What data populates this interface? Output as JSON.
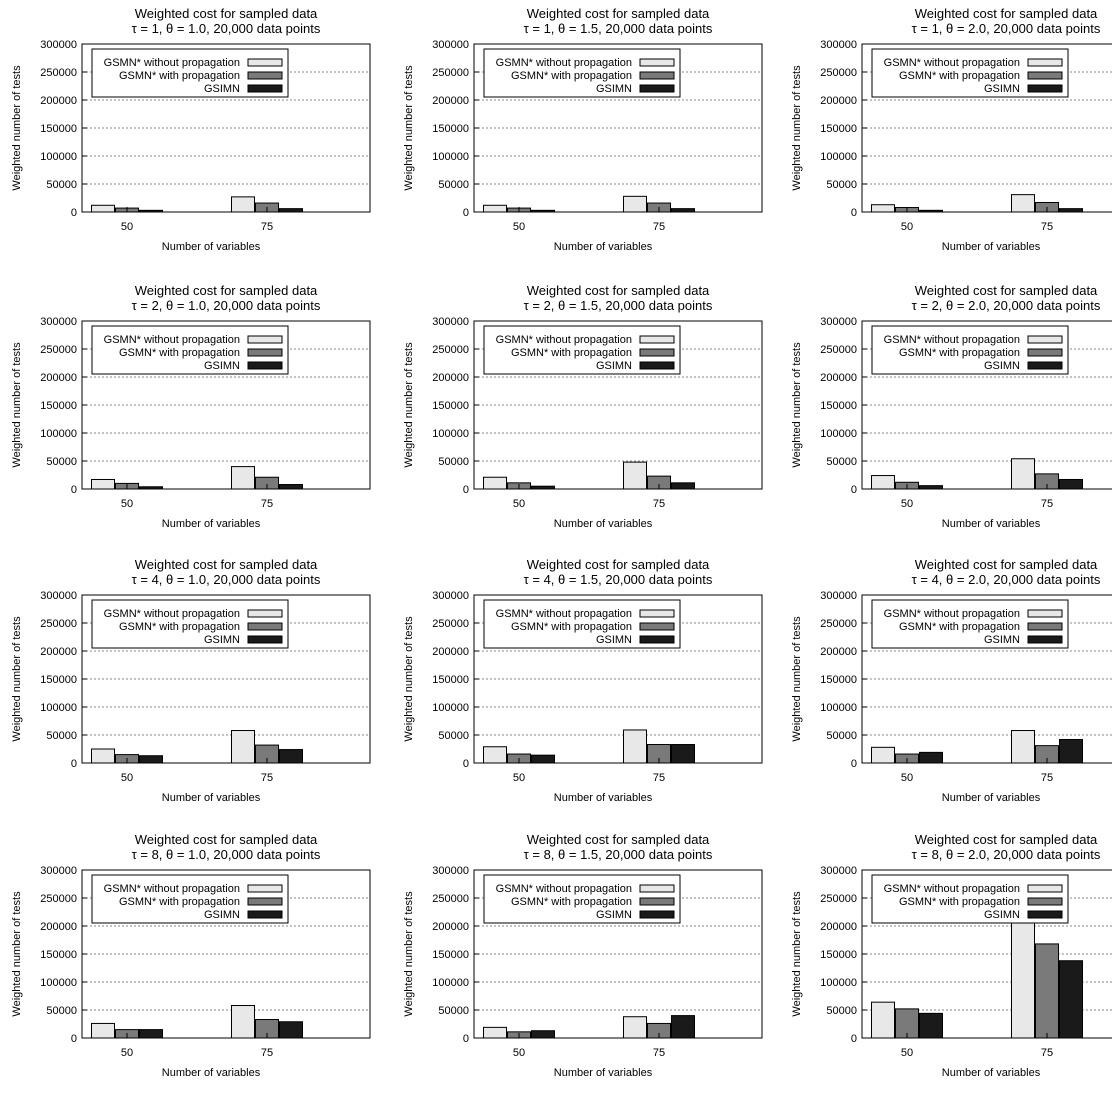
{
  "figure": {
    "colors": {
      "without": "#e8e8e8",
      "with": "#7a7a7a",
      "gsimn": "#1a1a1a",
      "grid": "#888888"
    }
  },
  "chart_data": [
    {
      "type": "bar",
      "title": "Weighted cost for sampled data",
      "subtitle": "τ = 1, θ = 1.0, 20,000 data points",
      "xlabel": "Number of variables",
      "ylabel": "Weighted number of tests",
      "categories": [
        "50",
        "75"
      ],
      "yticks": [
        "0",
        "50000",
        "100000",
        "150000",
        "200000",
        "250000",
        "300000"
      ],
      "ylim": [
        0,
        300000
      ],
      "grid": true,
      "legend": "top-left",
      "series": [
        {
          "name": "GSMN* without propagation",
          "values": [
            12000,
            27000
          ]
        },
        {
          "name": "GSMN* with propagation",
          "values": [
            7000,
            16000
          ]
        },
        {
          "name": "GSIMN",
          "values": [
            3000,
            6000
          ]
        }
      ]
    },
    {
      "type": "bar",
      "title": "Weighted cost for sampled data",
      "subtitle": "τ = 1, θ = 1.5, 20,000 data points",
      "xlabel": "Number of variables",
      "ylabel": "Weighted number of tests",
      "categories": [
        "50",
        "75"
      ],
      "yticks": [
        "0",
        "50000",
        "100000",
        "150000",
        "200000",
        "250000",
        "300000"
      ],
      "ylim": [
        0,
        300000
      ],
      "grid": true,
      "legend": "top-left",
      "series": [
        {
          "name": "GSMN* without propagation",
          "values": [
            12000,
            28000
          ]
        },
        {
          "name": "GSMN* with propagation",
          "values": [
            7000,
            16000
          ]
        },
        {
          "name": "GSIMN",
          "values": [
            3000,
            6000
          ]
        }
      ]
    },
    {
      "type": "bar",
      "title": "Weighted cost for sampled data",
      "subtitle": "τ = 1, θ = 2.0, 20,000 data points",
      "xlabel": "Number of variables",
      "ylabel": "Weighted number of tests",
      "categories": [
        "50",
        "75"
      ],
      "yticks": [
        "0",
        "50000",
        "100000",
        "150000",
        "200000",
        "250000",
        "300000"
      ],
      "ylim": [
        0,
        300000
      ],
      "grid": true,
      "legend": "top-left",
      "series": [
        {
          "name": "GSMN* without propagation",
          "values": [
            13000,
            31000
          ]
        },
        {
          "name": "GSMN* with propagation",
          "values": [
            8000,
            17000
          ]
        },
        {
          "name": "GSIMN",
          "values": [
            3000,
            6000
          ]
        }
      ]
    },
    {
      "type": "bar",
      "title": "Weighted cost for sampled data",
      "subtitle": "τ = 2, θ = 1.0, 20,000 data points",
      "xlabel": "Number of variables",
      "ylabel": "Weighted number of tests",
      "categories": [
        "50",
        "75"
      ],
      "yticks": [
        "0",
        "50000",
        "100000",
        "150000",
        "200000",
        "250000",
        "300000"
      ],
      "ylim": [
        0,
        300000
      ],
      "grid": true,
      "legend": "top-left",
      "series": [
        {
          "name": "GSMN* without propagation",
          "values": [
            17000,
            40000
          ]
        },
        {
          "name": "GSMN* with propagation",
          "values": [
            10000,
            21000
          ]
        },
        {
          "name": "GSIMN",
          "values": [
            4000,
            8000
          ]
        }
      ]
    },
    {
      "type": "bar",
      "title": "Weighted cost for sampled data",
      "subtitle": "τ = 2, θ = 1.5, 20,000 data points",
      "xlabel": "Number of variables",
      "ylabel": "Weighted number of tests",
      "categories": [
        "50",
        "75"
      ],
      "yticks": [
        "0",
        "50000",
        "100000",
        "150000",
        "200000",
        "250000",
        "300000"
      ],
      "ylim": [
        0,
        300000
      ],
      "grid": true,
      "legend": "top-left",
      "series": [
        {
          "name": "GSMN* without propagation",
          "values": [
            21000,
            48000
          ]
        },
        {
          "name": "GSMN* with propagation",
          "values": [
            11000,
            23000
          ]
        },
        {
          "name": "GSIMN",
          "values": [
            5000,
            11000
          ]
        }
      ]
    },
    {
      "type": "bar",
      "title": "Weighted cost for sampled data",
      "subtitle": "τ = 2, θ = 2.0, 20,000 data points",
      "xlabel": "Number of variables",
      "ylabel": "Weighted number of tests",
      "categories": [
        "50",
        "75"
      ],
      "yticks": [
        "0",
        "50000",
        "100000",
        "150000",
        "200000",
        "250000",
        "300000"
      ],
      "ylim": [
        0,
        300000
      ],
      "grid": true,
      "legend": "top-left",
      "series": [
        {
          "name": "GSMN* without propagation",
          "values": [
            24000,
            54000
          ]
        },
        {
          "name": "GSMN* with propagation",
          "values": [
            12000,
            27000
          ]
        },
        {
          "name": "GSIMN",
          "values": [
            6000,
            17000
          ]
        }
      ]
    },
    {
      "type": "bar",
      "title": "Weighted cost for sampled data",
      "subtitle": "τ = 4, θ = 1.0, 20,000 data points",
      "xlabel": "Number of variables",
      "ylabel": "Weighted number of tests",
      "categories": [
        "50",
        "75"
      ],
      "yticks": [
        "0",
        "50000",
        "100000",
        "150000",
        "200000",
        "250000",
        "300000"
      ],
      "ylim": [
        0,
        300000
      ],
      "grid": true,
      "legend": "top-left",
      "series": [
        {
          "name": "GSMN* without propagation",
          "values": [
            25000,
            58000
          ]
        },
        {
          "name": "GSMN* with propagation",
          "values": [
            15000,
            32000
          ]
        },
        {
          "name": "GSIMN",
          "values": [
            13000,
            24000
          ]
        }
      ]
    },
    {
      "type": "bar",
      "title": "Weighted cost for sampled data",
      "subtitle": "τ = 4, θ = 1.5, 20,000 data points",
      "xlabel": "Number of variables",
      "ylabel": "Weighted number of tests",
      "categories": [
        "50",
        "75"
      ],
      "yticks": [
        "0",
        "50000",
        "100000",
        "150000",
        "200000",
        "250000",
        "300000"
      ],
      "ylim": [
        0,
        300000
      ],
      "grid": true,
      "legend": "top-left",
      "series": [
        {
          "name": "GSMN* without propagation",
          "values": [
            29000,
            59000
          ]
        },
        {
          "name": "GSMN* with propagation",
          "values": [
            16000,
            33000
          ]
        },
        {
          "name": "GSIMN",
          "values": [
            14000,
            33000
          ]
        }
      ]
    },
    {
      "type": "bar",
      "title": "Weighted cost for sampled data",
      "subtitle": "τ = 4, θ = 2.0, 20,000 data points",
      "xlabel": "Number of variables",
      "ylabel": "Weighted number of tests",
      "categories": [
        "50",
        "75"
      ],
      "yticks": [
        "0",
        "50000",
        "100000",
        "150000",
        "200000",
        "250000",
        "300000"
      ],
      "ylim": [
        0,
        300000
      ],
      "grid": true,
      "legend": "top-left",
      "series": [
        {
          "name": "GSMN* without propagation",
          "values": [
            28000,
            58000
          ]
        },
        {
          "name": "GSMN* with propagation",
          "values": [
            16000,
            31000
          ]
        },
        {
          "name": "GSIMN",
          "values": [
            19000,
            42000
          ]
        }
      ]
    },
    {
      "type": "bar",
      "title": "Weighted cost for sampled data",
      "subtitle": "τ = 8, θ = 1.0, 20,000 data points",
      "xlabel": "Number of variables",
      "ylabel": "Weighted number of tests",
      "categories": [
        "50",
        "75"
      ],
      "yticks": [
        "0",
        "50000",
        "100000",
        "150000",
        "200000",
        "250000",
        "300000"
      ],
      "ylim": [
        0,
        300000
      ],
      "grid": true,
      "legend": "top-left",
      "series": [
        {
          "name": "GSMN* without propagation",
          "values": [
            26000,
            58000
          ]
        },
        {
          "name": "GSMN* with propagation",
          "values": [
            15000,
            33000
          ]
        },
        {
          "name": "GSIMN",
          "values": [
            15000,
            29000
          ]
        }
      ]
    },
    {
      "type": "bar",
      "title": "Weighted cost for sampled data",
      "subtitle": "τ = 8, θ = 1.5, 20,000 data points",
      "xlabel": "Number of variables",
      "ylabel": "Weighted number of tests",
      "categories": [
        "50",
        "75"
      ],
      "yticks": [
        "0",
        "50000",
        "100000",
        "150000",
        "200000",
        "250000",
        "300000"
      ],
      "ylim": [
        0,
        300000
      ],
      "grid": true,
      "legend": "top-left",
      "series": [
        {
          "name": "GSMN* without propagation",
          "values": [
            19000,
            38000
          ]
        },
        {
          "name": "GSMN* with propagation",
          "values": [
            11000,
            26000
          ]
        },
        {
          "name": "GSIMN",
          "values": [
            13000,
            40000
          ]
        }
      ]
    },
    {
      "type": "bar",
      "title": "Weighted cost for sampled data",
      "subtitle": "τ = 8, θ = 2.0, 20,000 data points",
      "xlabel": "Number of variables",
      "ylabel": "Weighted number of tests",
      "categories": [
        "50",
        "75"
      ],
      "yticks": [
        "0",
        "50000",
        "100000",
        "150000",
        "200000",
        "250000",
        "300000"
      ],
      "ylim": [
        0,
        300000
      ],
      "grid": true,
      "legend": "top-left",
      "series": [
        {
          "name": "GSMN* without propagation",
          "values": [
            64000,
            232000
          ]
        },
        {
          "name": "GSMN* with propagation",
          "values": [
            52000,
            168000
          ]
        },
        {
          "name": "GSIMN",
          "values": [
            44000,
            138000
          ]
        }
      ]
    }
  ]
}
